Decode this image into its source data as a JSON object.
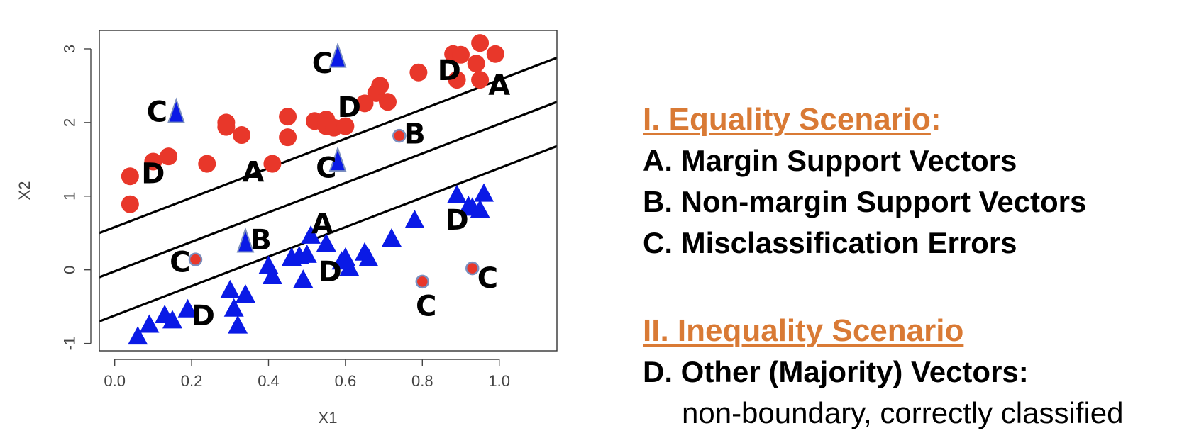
{
  "chart_data": {
    "type": "scatter",
    "xlabel": "X1",
    "ylabel": "X2",
    "xlim": [
      -0.04,
      1.15
    ],
    "ylim": [
      -1.1,
      3.25
    ],
    "x_ticks": [
      0.0,
      0.2,
      0.4,
      0.6,
      0.8,
      1.0
    ],
    "x_tick_labels": [
      "0.0",
      "0.2",
      "0.4",
      "0.6",
      "0.8",
      "1.0"
    ],
    "y_ticks": [
      -1,
      0,
      1,
      2,
      3
    ],
    "y_tick_labels": [
      "-1",
      "0",
      "1",
      "2",
      "3"
    ],
    "grid": false,
    "series": [
      {
        "marker": "circle",
        "color": "#E8372A",
        "points": [
          [
            0.04,
            1.27
          ],
          [
            0.04,
            0.89
          ],
          [
            0.1,
            1.47
          ],
          [
            0.14,
            1.54
          ],
          [
            0.24,
            1.44
          ],
          [
            0.29,
            2.0
          ],
          [
            0.29,
            1.94
          ],
          [
            0.33,
            1.83
          ],
          [
            0.41,
            1.44
          ],
          [
            0.45,
            2.08
          ],
          [
            0.45,
            1.8
          ],
          [
            0.52,
            2.02
          ],
          [
            0.55,
            2.04
          ],
          [
            0.55,
            1.95
          ],
          [
            0.57,
            1.93
          ],
          [
            0.6,
            1.95
          ],
          [
            0.65,
            2.26
          ],
          [
            0.68,
            2.4
          ],
          [
            0.69,
            2.5
          ],
          [
            0.71,
            2.28
          ],
          [
            0.79,
            2.68
          ],
          [
            0.88,
            2.93
          ],
          [
            0.9,
            2.92
          ],
          [
            0.89,
            2.58
          ],
          [
            0.94,
            2.8
          ],
          [
            0.95,
            2.58
          ],
          [
            0.95,
            3.08
          ],
          [
            0.99,
            2.93
          ]
        ]
      },
      {
        "marker": "triangle",
        "color": "#0A1AE6",
        "points": [
          [
            0.06,
            -0.92
          ],
          [
            0.09,
            -0.76
          ],
          [
            0.13,
            -0.63
          ],
          [
            0.15,
            -0.7
          ],
          [
            0.19,
            -0.55
          ],
          [
            0.3,
            -0.29
          ],
          [
            0.31,
            -0.54
          ],
          [
            0.32,
            -0.77
          ],
          [
            0.34,
            -0.35
          ],
          [
            0.4,
            0.04
          ],
          [
            0.41,
            -0.1
          ],
          [
            0.46,
            0.15
          ],
          [
            0.48,
            0.17
          ],
          [
            0.49,
            -0.15
          ],
          [
            0.5,
            0.19
          ],
          [
            0.51,
            0.45
          ],
          [
            0.55,
            0.34
          ],
          [
            0.59,
            0.1
          ],
          [
            0.6,
            0.15
          ],
          [
            0.61,
            0.01
          ],
          [
            0.65,
            0.22
          ],
          [
            0.66,
            0.14
          ],
          [
            0.72,
            0.41
          ],
          [
            0.78,
            0.66
          ],
          [
            0.89,
            1.0
          ],
          [
            0.92,
            0.85
          ],
          [
            0.93,
            0.83
          ],
          [
            0.96,
            1.02
          ],
          [
            0.95,
            0.8
          ]
        ]
      },
      {
        "marker": "triangle",
        "color": "#0A1AE6",
        "role": "misclassified",
        "points": [
          [
            0.58,
            2.87
          ],
          [
            0.16,
            2.12
          ],
          [
            0.58,
            1.46
          ],
          [
            0.34,
            0.36
          ]
        ]
      },
      {
        "marker": "circle",
        "color": "#E8372A",
        "role": "misclassified",
        "points": [
          [
            0.74,
            1.82
          ],
          [
            0.21,
            0.14
          ],
          [
            0.8,
            -0.16
          ],
          [
            0.93,
            0.02
          ]
        ]
      }
    ],
    "lines": [
      {
        "x": [
          -0.04,
          1.15
        ],
        "y": [
          0.5,
          2.88
        ]
      },
      {
        "x": [
          -0.04,
          1.15
        ],
        "y": [
          -0.1,
          2.28
        ]
      },
      {
        "x": [
          -0.04,
          1.15
        ],
        "y": [
          -0.7,
          1.68
        ]
      }
    ],
    "annotations": [
      {
        "text": "C",
        "x": 0.54,
        "y": 2.8
      },
      {
        "text": "D",
        "x": 0.87,
        "y": 2.7
      },
      {
        "text": "A",
        "x": 1.0,
        "y": 2.5
      },
      {
        "text": "C",
        "x": 0.11,
        "y": 2.14
      },
      {
        "text": "D",
        "x": 0.61,
        "y": 2.2
      },
      {
        "text": "B",
        "x": 0.78,
        "y": 1.84
      },
      {
        "text": "D",
        "x": 0.1,
        "y": 1.3
      },
      {
        "text": "A",
        "x": 0.36,
        "y": 1.32
      },
      {
        "text": "C",
        "x": 0.55,
        "y": 1.38
      },
      {
        "text": "A",
        "x": 0.54,
        "y": 0.62
      },
      {
        "text": "D",
        "x": 0.89,
        "y": 0.67
      },
      {
        "text": "B",
        "x": 0.38,
        "y": 0.4
      },
      {
        "text": "C",
        "x": 0.17,
        "y": 0.1
      },
      {
        "text": "D",
        "x": 0.56,
        "y": -0.03
      },
      {
        "text": "C",
        "x": 0.97,
        "y": -0.12
      },
      {
        "text": "C",
        "x": 0.81,
        "y": -0.5
      },
      {
        "text": "D",
        "x": 0.23,
        "y": -0.63
      }
    ],
    "colors": {
      "positive": "#E8372A",
      "negative": "#0A1AE6",
      "misclassified_outline": "#7B8FBF",
      "label": "#000000"
    }
  },
  "legend": {
    "section1_title": "I. Equality Scenario",
    "section1_colon": ":",
    "item_a": "A. Margin Support Vectors",
    "item_b": "B. Non-margin Support Vectors",
    "item_c": "C.  Misclassification Errors",
    "section2_title": "II. Inequality Scenario",
    "item_d": "D. Other (Majority) Vectors:",
    "item_d_sub": "non-boundary, correctly classified"
  },
  "colors": {
    "heading": "#D97A35",
    "text": "#000000"
  }
}
